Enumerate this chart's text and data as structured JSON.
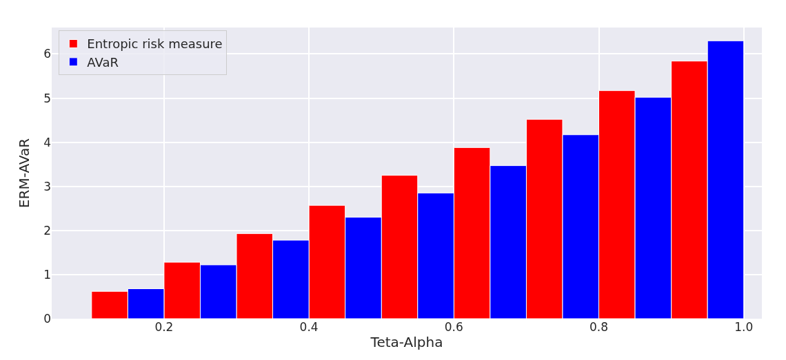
{
  "chart_data": {
    "type": "bar",
    "xlabel": "Teta-Alpha",
    "ylabel": "ERM-AVaR",
    "series": [
      {
        "name": "Entropic risk measure",
        "color": "#ff0000",
        "x": [
          0.125,
          0.225,
          0.325,
          0.425,
          0.525,
          0.625,
          0.725,
          0.825,
          0.925
        ],
        "values": [
          0.62,
          1.28,
          1.93,
          2.57,
          3.25,
          3.88,
          4.52,
          5.17,
          5.84
        ]
      },
      {
        "name": "AVaR",
        "color": "#0000ff",
        "x": [
          0.175,
          0.275,
          0.375,
          0.475,
          0.575,
          0.675,
          0.775,
          0.875,
          0.975
        ],
        "values": [
          0.68,
          1.22,
          1.78,
          2.3,
          2.85,
          3.47,
          4.17,
          5.02,
          6.3
        ]
      }
    ],
    "xlim": [
      0.045,
      1.025
    ],
    "ylim": [
      0,
      6.6
    ],
    "xticks": [
      {
        "value": 0.2,
        "label": "0.2"
      },
      {
        "value": 0.4,
        "label": "0.4"
      },
      {
        "value": 0.6,
        "label": "0.6"
      },
      {
        "value": 0.8,
        "label": "0.8"
      },
      {
        "value": 1.0,
        "label": "1.0"
      }
    ],
    "yticks": [
      0,
      1,
      2,
      3,
      4,
      5,
      6
    ],
    "grid": true,
    "legend": "top left"
  }
}
